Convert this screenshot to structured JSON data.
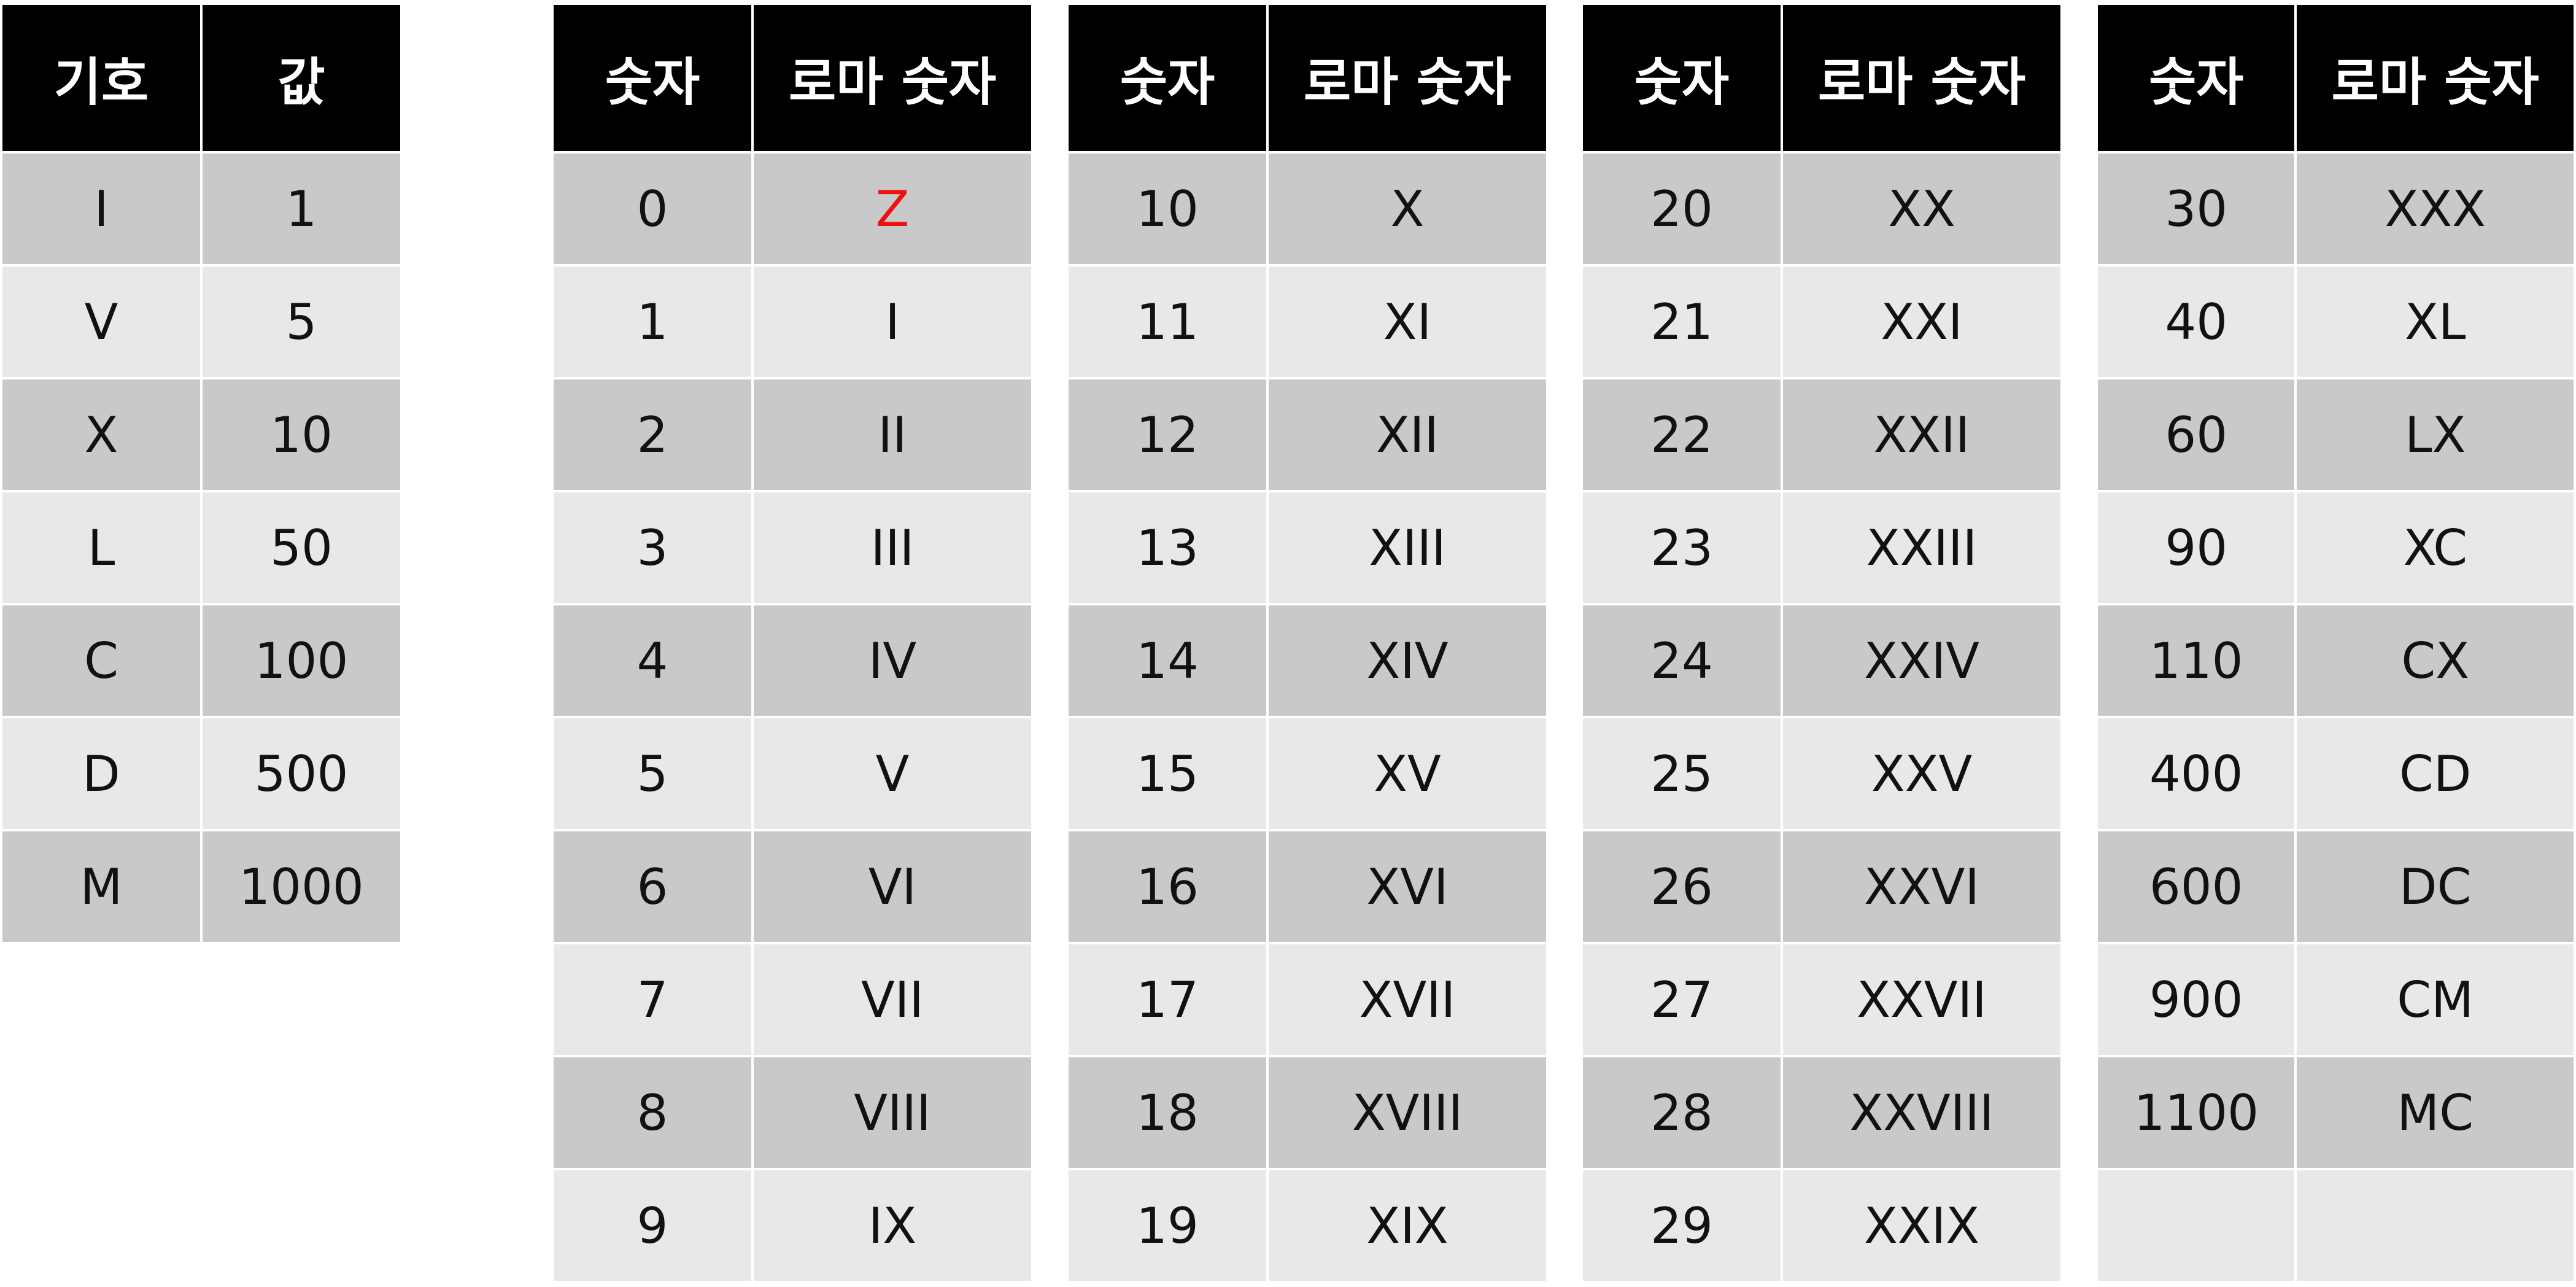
{
  "symbols_table": {
    "headers": [
      "기호",
      "값"
    ],
    "rows": [
      [
        "I",
        "1"
      ],
      [
        "V",
        "5"
      ],
      [
        "X",
        "10"
      ],
      [
        "L",
        "50"
      ],
      [
        "C",
        "100"
      ],
      [
        "D",
        "500"
      ],
      [
        "M",
        "1000"
      ]
    ]
  },
  "numeral_tables": [
    {
      "headers": [
        "숫자",
        "로마 숫자"
      ],
      "rows": [
        [
          "0",
          "Z"
        ],
        [
          "1",
          "I"
        ],
        [
          "2",
          "II"
        ],
        [
          "3",
          "III"
        ],
        [
          "4",
          "IV"
        ],
        [
          "5",
          "V"
        ],
        [
          "6",
          "VI"
        ],
        [
          "7",
          "VII"
        ],
        [
          "8",
          "VIII"
        ],
        [
          "9",
          "IX"
        ]
      ]
    },
    {
      "headers": [
        "숫자",
        "로마 숫자"
      ],
      "rows": [
        [
          "10",
          "X"
        ],
        [
          "11",
          "XI"
        ],
        [
          "12",
          "XII"
        ],
        [
          "13",
          "XIII"
        ],
        [
          "14",
          "XIV"
        ],
        [
          "15",
          "XV"
        ],
        [
          "16",
          "XVI"
        ],
        [
          "17",
          "XVII"
        ],
        [
          "18",
          "XVIII"
        ],
        [
          "19",
          "XIX"
        ]
      ]
    },
    {
      "headers": [
        "숫자",
        "로마 숫자"
      ],
      "rows": [
        [
          "20",
          "XX"
        ],
        [
          "21",
          "XXI"
        ],
        [
          "22",
          "XXII"
        ],
        [
          "23",
          "XXIII"
        ],
        [
          "24",
          "XXIV"
        ],
        [
          "25",
          "XXV"
        ],
        [
          "26",
          "XXVI"
        ],
        [
          "27",
          "XXVII"
        ],
        [
          "28",
          "XXVIII"
        ],
        [
          "29",
          "XXIX"
        ]
      ]
    },
    {
      "headers": [
        "숫자",
        "로마 숫자"
      ],
      "rows": [
        [
          "30",
          "XXX"
        ],
        [
          "40",
          "XL"
        ],
        [
          "60",
          "LX"
        ],
        [
          "90",
          "XC"
        ],
        [
          "110",
          "CX"
        ],
        [
          "400",
          "CD"
        ],
        [
          "600",
          "DC"
        ],
        [
          "900",
          "CM"
        ],
        [
          "1100",
          "MC"
        ],
        [
          "",
          ""
        ]
      ]
    }
  ],
  "colors": {
    "header_bg": "#000000",
    "header_text": "#ffffff",
    "row_dark": "#c9c9c9",
    "row_light": "#e8e8e8",
    "highlight_text": "#ee1111"
  }
}
